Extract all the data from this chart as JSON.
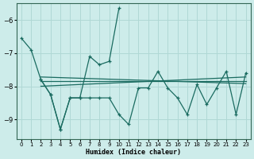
{
  "xlabel": "Humidex (Indice chaleur)",
  "xlim": [
    -0.5,
    23.5
  ],
  "ylim": [
    -9.6,
    -5.5
  ],
  "yticks": [
    -9,
    -8,
    -7,
    -6
  ],
  "xticks": [
    0,
    1,
    2,
    3,
    4,
    5,
    6,
    7,
    8,
    9,
    10,
    11,
    12,
    13,
    14,
    15,
    16,
    17,
    18,
    19,
    20,
    21,
    22,
    23
  ],
  "bg_color": "#cdecea",
  "grid_color": "#b0d8d5",
  "line_color": "#1a6b60",
  "series1_x": [
    0,
    1,
    2,
    3,
    4,
    5,
    6,
    7,
    8,
    9,
    10
  ],
  "series1_y": [
    -6.55,
    -6.9,
    -7.8,
    -8.25,
    -9.3,
    -8.35,
    -8.35,
    -7.1,
    -7.35,
    -7.25,
    -5.65
  ],
  "series2_x": [
    2,
    3,
    4,
    5,
    6,
    7,
    8,
    9,
    10,
    11,
    12,
    13,
    14,
    15,
    16,
    17,
    18,
    19,
    20,
    21,
    22,
    23
  ],
  "series2_y": [
    -7.8,
    -8.25,
    -9.3,
    -8.35,
    -8.35,
    -8.35,
    -8.35,
    -8.35,
    -8.85,
    -9.15,
    -8.05,
    -8.05,
    -7.55,
    -8.05,
    -8.35,
    -8.85,
    -7.95,
    -8.55,
    -8.05,
    -7.55,
    -8.85,
    -7.6
  ],
  "trend1_x": [
    2,
    23
  ],
  "trend1_y": [
    -7.72,
    -7.92
  ],
  "trend2_x": [
    2,
    23
  ],
  "trend2_y": [
    -7.85,
    -7.85
  ],
  "trend3_x": [
    2,
    23
  ],
  "trend3_y": [
    -8.0,
    -7.72
  ]
}
